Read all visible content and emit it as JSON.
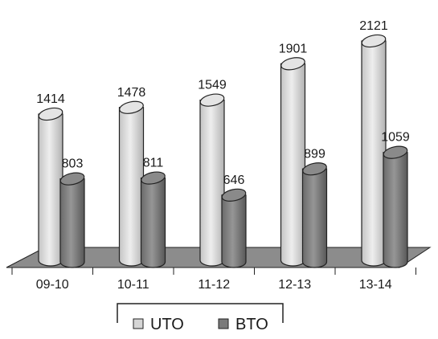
{
  "chart_data": {
    "type": "bar",
    "style": "3d-cylinder",
    "categories": [
      "09-10",
      "10-11",
      "11-12",
      "12-13",
      "13-14"
    ],
    "series": [
      {
        "name": "UTO",
        "values": [
          1414,
          1478,
          1549,
          1901,
          2121
        ],
        "color": "#d6d6d6"
      },
      {
        "name": "BTO",
        "values": [
          803,
          811,
          646,
          899,
          1059
        ],
        "color": "#7a7a7a"
      }
    ],
    "ylim": [
      0,
      2121
    ],
    "grid": false,
    "floor_color": "#8c8c8c",
    "legend_position": "bottom-center"
  }
}
